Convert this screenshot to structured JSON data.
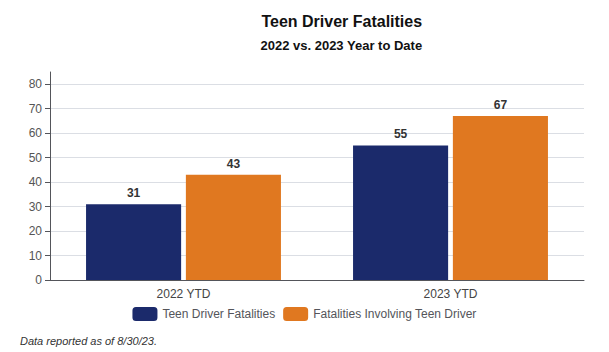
{
  "chart_data": {
    "type": "bar",
    "title": "Teen Driver Fatalities",
    "subtitle": "2022 vs. 2023 Year to Date",
    "categories": [
      "2022 YTD",
      "2023 YTD"
    ],
    "series": [
      {
        "name": "Teen Driver Fatalities",
        "color": "#1B2A6B",
        "values": [
          31,
          55
        ]
      },
      {
        "name": "Fatalities Involving Teen Driver",
        "color": "#E07820",
        "values": [
          43,
          67
        ]
      }
    ],
    "ylim": [
      0,
      85
    ],
    "yticks": [
      0,
      10,
      20,
      30,
      40,
      50,
      60,
      70,
      80
    ],
    "grid": true,
    "legend": "bottom",
    "data_labels": true,
    "annotations": [
      "Data reported as of 8/30/23."
    ]
  }
}
